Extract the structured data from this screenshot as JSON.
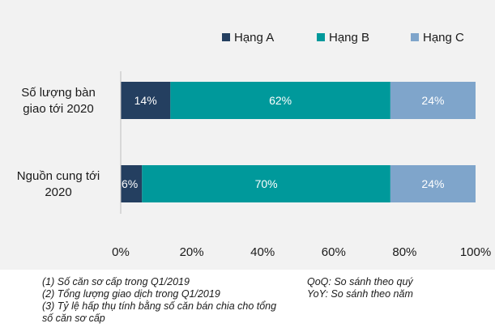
{
  "chart_data": {
    "type": "bar",
    "orientation": "horizontal",
    "stacked": true,
    "categories": [
      "Số lượng bàn giao tới 2020",
      "Nguồn cung tới 2020"
    ],
    "category_lines": [
      [
        "Số lượng bàn",
        "giao tới 2020"
      ],
      [
        "Nguồn cung tới",
        "2020"
      ]
    ],
    "series": [
      {
        "name": "Hạng A",
        "color": "#243f60",
        "values": [
          14,
          6
        ],
        "labels": [
          "14%",
          "6%"
        ]
      },
      {
        "name": "Hạng B",
        "color": "#00999b",
        "values": [
          62,
          70
        ],
        "labels": [
          "62%",
          "70%"
        ]
      },
      {
        "name": "Hạng C",
        "color": "#7fa5cb",
        "values": [
          24,
          24
        ],
        "labels": [
          "24%",
          "24%"
        ]
      }
    ],
    "xlim": [
      0,
      100
    ],
    "xticks": [
      "0%",
      "20%",
      "40%",
      "60%",
      "80%",
      "100%"
    ],
    "grid": false,
    "legend": "top"
  },
  "notes": [
    "(1) Số căn sơ cấp trong Q1/2019",
    "(2) Tổng lượng giao dịch trong Q1/2019",
    "(3) Tỷ lệ hấp thụ tính bằng số căn bán chia cho tổng số căn sơ cấp"
  ],
  "definitions": [
    "QoQ: So sánh theo quý",
    "YoY: So sánh theo năm"
  ]
}
